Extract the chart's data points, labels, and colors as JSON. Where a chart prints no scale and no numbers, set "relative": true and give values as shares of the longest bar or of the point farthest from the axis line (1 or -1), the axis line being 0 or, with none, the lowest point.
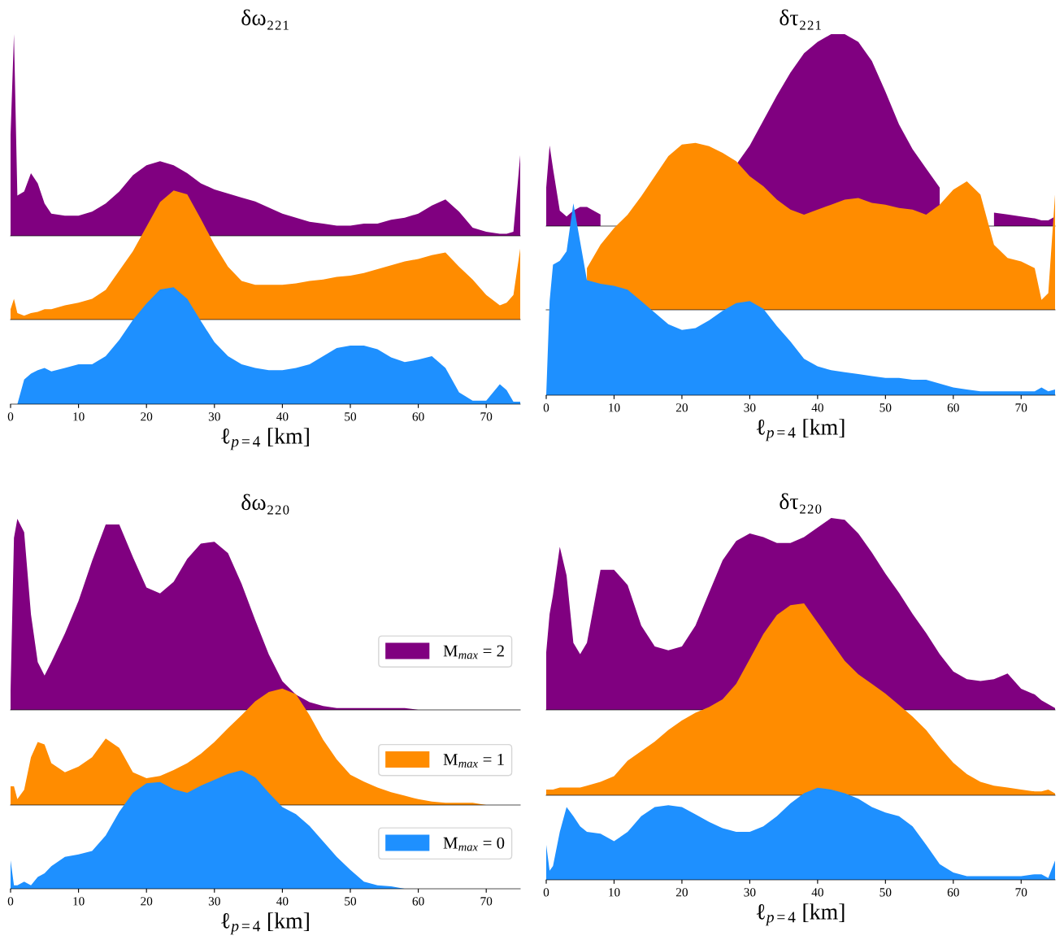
{
  "chart_data": [
    {
      "type": "area",
      "title": "δω₂₂₁",
      "relative": true,
      "tick_labels": false,
      "xlim": [
        0,
        75
      ],
      "x": [
        0,
        0.5,
        1,
        2,
        3,
        4,
        5,
        6,
        8,
        10,
        12,
        14,
        16,
        18,
        20,
        22,
        24,
        26,
        28,
        30,
        32,
        34,
        36,
        38,
        40,
        42,
        44,
        46,
        48,
        50,
        52,
        54,
        56,
        58,
        60,
        62,
        64,
        66,
        68,
        70,
        72,
        73,
        74,
        75
      ],
      "series": [
        {
          "color": "#800080",
          "values": [
            0.5,
            1.0,
            0.2,
            0.22,
            0.31,
            0.26,
            0.16,
            0.11,
            0.1,
            0.1,
            0.12,
            0.16,
            0.22,
            0.3,
            0.35,
            0.37,
            0.35,
            0.31,
            0.26,
            0.23,
            0.21,
            0.19,
            0.17,
            0.14,
            0.11,
            0.09,
            0.07,
            0.06,
            0.05,
            0.05,
            0.06,
            0.06,
            0.08,
            0.09,
            0.11,
            0.15,
            0.18,
            0.12,
            0.04,
            0.02,
            0.01,
            0.01,
            0.02,
            0.4
          ]
        }
      ]
    },
    {
      "type": "area",
      "relative": true,
      "tick_labels": false,
      "xlim": [
        0,
        75
      ],
      "x": [
        0,
        0.5,
        1,
        2,
        3,
        4,
        5,
        6,
        8,
        10,
        12,
        14,
        16,
        18,
        20,
        22,
        24,
        26,
        28,
        30,
        32,
        34,
        36,
        38,
        40,
        42,
        44,
        46,
        48,
        50,
        52,
        54,
        56,
        58,
        60,
        62,
        64,
        66,
        68,
        70,
        72,
        73,
        74,
        75
      ],
      "series": [
        {
          "color": "#ff8c00",
          "values": [
            0.08,
            0.16,
            0.05,
            0.03,
            0.05,
            0.06,
            0.08,
            0.08,
            0.11,
            0.13,
            0.16,
            0.23,
            0.38,
            0.53,
            0.72,
            0.91,
            1.0,
            0.97,
            0.78,
            0.58,
            0.41,
            0.3,
            0.27,
            0.27,
            0.27,
            0.28,
            0.3,
            0.31,
            0.33,
            0.34,
            0.36,
            0.39,
            0.42,
            0.45,
            0.47,
            0.5,
            0.52,
            0.41,
            0.31,
            0.19,
            0.11,
            0.13,
            0.19,
            0.55
          ]
        }
      ]
    },
    {
      "type": "area",
      "xlabel": "ℓ$_{p=4}$ [km]",
      "relative": true,
      "tick_labels": "x",
      "xlim": [
        0,
        75
      ],
      "xticks": [
        0,
        10,
        20,
        30,
        40,
        50,
        60,
        70
      ],
      "x": [
        0,
        0.5,
        1,
        2,
        3,
        4,
        5,
        6,
        8,
        10,
        12,
        14,
        16,
        18,
        20,
        22,
        24,
        26,
        28,
        30,
        32,
        34,
        36,
        38,
        40,
        42,
        44,
        46,
        48,
        50,
        52,
        54,
        56,
        58,
        60,
        62,
        64,
        66,
        68,
        70,
        72,
        73,
        74,
        75
      ],
      "series": [
        {
          "color": "#1e90ff",
          "values": [
            0,
            0,
            0,
            0.21,
            0.26,
            0.29,
            0.31,
            0.28,
            0.31,
            0.34,
            0.34,
            0.41,
            0.55,
            0.72,
            0.86,
            0.98,
            1.0,
            0.9,
            0.71,
            0.53,
            0.41,
            0.34,
            0.31,
            0.29,
            0.29,
            0.31,
            0.34,
            0.41,
            0.48,
            0.5,
            0.5,
            0.47,
            0.4,
            0.36,
            0.38,
            0.41,
            0.31,
            0.1,
            0.03,
            0.03,
            0.17,
            0.12,
            0.02,
            0.02
          ]
        }
      ]
    },
    {
      "type": "area",
      "title": "δτ₂₂₁",
      "relative": true,
      "tick_labels": false,
      "xlim": [
        0,
        75
      ],
      "x": [
        0,
        0.5,
        1,
        2,
        3,
        4,
        5,
        6,
        8,
        10,
        12,
        14,
        16,
        18,
        20,
        22,
        24,
        26,
        28,
        30,
        32,
        34,
        36,
        38,
        40,
        42,
        44,
        46,
        48,
        50,
        52,
        54,
        56,
        58,
        60,
        62,
        64,
        66,
        68,
        70,
        72,
        73,
        74,
        75
      ],
      "series": [
        {
          "color": "#800080",
          "values": [
            0.2,
            0.42,
            0.3,
            0.08,
            0.05,
            0.08,
            0.1,
            0.1,
            0.06,
            null,
            null,
            null,
            null,
            null,
            null,
            null,
            null,
            null,
            0.32,
            0.42,
            0.55,
            0.68,
            0.8,
            0.9,
            0.96,
            1.0,
            1.0,
            0.96,
            0.86,
            0.7,
            0.53,
            0.4,
            0.3,
            0.2,
            null,
            null,
            null,
            0.07,
            0.06,
            0.05,
            0.04,
            0.03,
            0.03,
            0.05
          ]
        }
      ]
    },
    {
      "type": "area",
      "relative": true,
      "tick_labels": false,
      "xlim": [
        0,
        75
      ],
      "x": [
        6,
        8,
        10,
        12,
        14,
        16,
        18,
        20,
        22,
        24,
        26,
        28,
        30,
        32,
        34,
        36,
        38,
        40,
        42,
        44,
        46,
        48,
        50,
        52,
        54,
        56,
        58,
        60,
        62,
        64,
        66,
        68,
        70,
        72,
        73,
        74,
        75
      ],
      "series": [
        {
          "color": "#ff8c00",
          "values": [
            0.25,
            0.39,
            0.49,
            0.57,
            0.68,
            0.8,
            0.92,
            0.99,
            1.0,
            0.98,
            0.94,
            0.89,
            0.8,
            0.74,
            0.66,
            0.6,
            0.57,
            0.6,
            0.63,
            0.66,
            0.67,
            0.64,
            0.63,
            0.61,
            0.6,
            0.57,
            0.63,
            0.72,
            0.77,
            0.69,
            0.39,
            0.31,
            0.29,
            0.25,
            0.06,
            0.1,
            0.69
          ]
        }
      ]
    },
    {
      "type": "area",
      "xlabel": "ℓ$_{p=4}$ [km]",
      "relative": true,
      "tick_labels": "x",
      "xlim": [
        0,
        75
      ],
      "xticks": [
        0,
        10,
        20,
        30,
        40,
        50,
        60,
        70
      ],
      "x": [
        0,
        0.5,
        1,
        2,
        3,
        4,
        5,
        6,
        8,
        10,
        12,
        14,
        16,
        18,
        20,
        22,
        24,
        26,
        28,
        30,
        32,
        34,
        36,
        38,
        40,
        42,
        44,
        46,
        48,
        50,
        52,
        54,
        56,
        58,
        60,
        62,
        64,
        66,
        68,
        70,
        72,
        73,
        74,
        75
      ],
      "series": [
        {
          "color": "#1e90ff",
          "values": [
            0,
            0.49,
            0.68,
            0.7,
            0.75,
            1.0,
            0.8,
            0.6,
            0.58,
            0.57,
            0.55,
            0.49,
            0.43,
            0.37,
            0.34,
            0.35,
            0.39,
            0.44,
            0.48,
            0.49,
            0.45,
            0.36,
            0.28,
            0.19,
            0.15,
            0.13,
            0.12,
            0.11,
            0.1,
            0.09,
            0.09,
            0.08,
            0.08,
            0.06,
            0.04,
            0.03,
            0.02,
            0.02,
            0.02,
            0.02,
            0.02,
            0.04,
            0.02,
            0.03
          ]
        }
      ]
    },
    {
      "type": "area",
      "title": "δω₂₂₀",
      "relative": true,
      "tick_labels": false,
      "legend": "bottom right",
      "xlim": [
        0,
        75
      ],
      "x": [
        0,
        0.5,
        1,
        2,
        3,
        4,
        5,
        6,
        8,
        10,
        12,
        14,
        16,
        18,
        20,
        22,
        24,
        26,
        28,
        30,
        32,
        34,
        36,
        38,
        40,
        42,
        44,
        46,
        48,
        50,
        52,
        54,
        56,
        58,
        60,
        62,
        64,
        66,
        68,
        70,
        72,
        73,
        74,
        75
      ],
      "series": [
        {
          "name": "M$_{max}$ = 2",
          "color": "#800080",
          "values": [
            0.1,
            0.9,
            1.0,
            0.93,
            0.5,
            0.25,
            0.18,
            0.25,
            0.4,
            0.57,
            0.78,
            0.97,
            0.97,
            0.8,
            0.64,
            0.61,
            0.67,
            0.79,
            0.87,
            0.88,
            0.82,
            0.66,
            0.47,
            0.29,
            0.15,
            0.08,
            0.04,
            0.02,
            0.01,
            0.01,
            0.01,
            0.01,
            0.01,
            0.01,
            0,
            0,
            0,
            0,
            0,
            0,
            0,
            0,
            0,
            0
          ]
        }
      ]
    },
    {
      "type": "area",
      "relative": true,
      "tick_labels": false,
      "legend": "bottom right",
      "xlim": [
        0,
        75
      ],
      "x": [
        0,
        0.5,
        1,
        2,
        3,
        4,
        5,
        6,
        8,
        10,
        12,
        14,
        16,
        18,
        20,
        22,
        24,
        26,
        28,
        30,
        32,
        34,
        36,
        38,
        40,
        42,
        44,
        46,
        48,
        50,
        52,
        54,
        56,
        58,
        60,
        62,
        64,
        66,
        68,
        70,
        72,
        73,
        74,
        75
      ],
      "series": [
        {
          "name": "M$_{max}$ = 1",
          "color": "#ff8c00",
          "values": [
            0.16,
            0.16,
            0.05,
            0.13,
            0.41,
            0.54,
            0.52,
            0.36,
            0.28,
            0.33,
            0.41,
            0.57,
            0.49,
            0.28,
            0.23,
            0.25,
            0.3,
            0.36,
            0.44,
            0.54,
            0.66,
            0.77,
            0.89,
            0.97,
            1.0,
            0.95,
            0.77,
            0.56,
            0.39,
            0.26,
            0.2,
            0.15,
            0.11,
            0.08,
            0.05,
            0.03,
            0.02,
            0.02,
            0.02,
            0,
            0,
            0,
            0,
            0
          ]
        }
      ]
    },
    {
      "type": "area",
      "xlabel": "ℓ$_{p=4}$ [km]",
      "relative": true,
      "tick_labels": "x",
      "legend": "bottom right",
      "xlim": [
        0,
        75
      ],
      "xticks": [
        0,
        10,
        20,
        30,
        40,
        50,
        60,
        70
      ],
      "x": [
        0,
        0.5,
        1,
        2,
        3,
        4,
        5,
        6,
        8,
        10,
        12,
        14,
        16,
        18,
        20,
        22,
        24,
        26,
        28,
        30,
        32,
        34,
        36,
        38,
        40,
        42,
        44,
        46,
        48,
        50,
        52,
        54,
        56,
        58,
        60,
        62,
        64,
        66,
        68,
        70,
        72,
        73,
        74,
        75
      ],
      "series": [
        {
          "name": "M$_{max}$ = 0",
          "color": "#1e90ff",
          "values": [
            0.24,
            0.03,
            0.03,
            0.06,
            0.03,
            0.1,
            0.13,
            0.19,
            0.27,
            0.29,
            0.32,
            0.45,
            0.65,
            0.81,
            0.89,
            0.9,
            0.84,
            0.81,
            0.87,
            0.92,
            0.97,
            1.0,
            0.94,
            0.81,
            0.69,
            0.63,
            0.53,
            0.4,
            0.27,
            0.16,
            0.06,
            0.03,
            0.02,
            0,
            0,
            0,
            0,
            0,
            0,
            0,
            0,
            0,
            0,
            0
          ]
        }
      ]
    },
    {
      "type": "area",
      "title": "δτ₂₂₀",
      "relative": true,
      "tick_labels": false,
      "xlim": [
        0,
        75
      ],
      "x": [
        0,
        0.5,
        1,
        2,
        3,
        4,
        5,
        6,
        8,
        10,
        12,
        14,
        16,
        18,
        20,
        22,
        24,
        26,
        28,
        30,
        32,
        34,
        36,
        38,
        40,
        42,
        44,
        46,
        48,
        50,
        52,
        54,
        56,
        58,
        60,
        62,
        64,
        66,
        68,
        70,
        72,
        73,
        74,
        75
      ],
      "series": [
        {
          "color": "#800080",
          "values": [
            0.3,
            0.5,
            0.6,
            0.85,
            0.7,
            0.35,
            0.29,
            0.35,
            0.73,
            0.73,
            0.65,
            0.44,
            0.33,
            0.31,
            0.33,
            0.44,
            0.61,
            0.78,
            0.88,
            0.92,
            0.9,
            0.87,
            0.87,
            0.9,
            0.95,
            1.0,
            0.99,
            0.92,
            0.82,
            0.71,
            0.61,
            0.5,
            0.4,
            0.29,
            0.2,
            0.16,
            0.15,
            0.16,
            0.19,
            0.11,
            0.08,
            0.05,
            0.03,
            0.01
          ]
        }
      ]
    },
    {
      "type": "area",
      "relative": true,
      "tick_labels": false,
      "xlim": [
        0,
        75
      ],
      "x": [
        0,
        0.5,
        1,
        2,
        3,
        4,
        5,
        6,
        8,
        10,
        12,
        14,
        16,
        18,
        20,
        22,
        24,
        26,
        28,
        30,
        32,
        34,
        36,
        38,
        40,
        42,
        44,
        46,
        48,
        50,
        52,
        54,
        56,
        58,
        60,
        62,
        64,
        66,
        68,
        70,
        72,
        73,
        74,
        75
      ],
      "series": [
        {
          "color": "#ff8c00",
          "values": [
            0.03,
            0.03,
            0.03,
            0.04,
            0.04,
            0.04,
            0.04,
            0.05,
            0.07,
            0.1,
            0.18,
            0.23,
            0.28,
            0.34,
            0.39,
            0.43,
            0.46,
            0.5,
            0.58,
            0.71,
            0.84,
            0.94,
            0.99,
            1.0,
            0.9,
            0.8,
            0.7,
            0.63,
            0.58,
            0.53,
            0.47,
            0.41,
            0.34,
            0.25,
            0.17,
            0.11,
            0.07,
            0.05,
            0.04,
            0.03,
            0.02,
            0.02,
            0.03,
            0.01
          ]
        }
      ]
    },
    {
      "type": "area",
      "xlabel": "ℓ$_{p=4}$ [km]",
      "relative": true,
      "tick_labels": "x",
      "xlim": [
        0,
        75
      ],
      "xticks": [
        0,
        10,
        20,
        30,
        40,
        50,
        60,
        70
      ],
      "x": [
        0,
        0.5,
        1,
        2,
        3,
        4,
        5,
        6,
        8,
        10,
        12,
        14,
        16,
        18,
        20,
        22,
        24,
        26,
        28,
        30,
        32,
        34,
        36,
        38,
        40,
        42,
        44,
        46,
        48,
        50,
        52,
        54,
        56,
        58,
        60,
        62,
        64,
        66,
        68,
        70,
        72,
        73,
        74,
        75
      ],
      "series": [
        {
          "color": "#1e90ff",
          "values": [
            0.38,
            0.1,
            0.15,
            0.52,
            0.79,
            0.69,
            0.58,
            0.52,
            0.5,
            0.42,
            0.52,
            0.69,
            0.79,
            0.81,
            0.79,
            0.71,
            0.63,
            0.56,
            0.52,
            0.52,
            0.58,
            0.69,
            0.83,
            0.94,
            1.0,
            0.98,
            0.94,
            0.88,
            0.79,
            0.73,
            0.69,
            0.58,
            0.38,
            0.17,
            0.08,
            0.04,
            0.04,
            0.04,
            0.04,
            0.04,
            0.06,
            0.06,
            0.02,
            0.21
          ]
        }
      ]
    }
  ]
}
